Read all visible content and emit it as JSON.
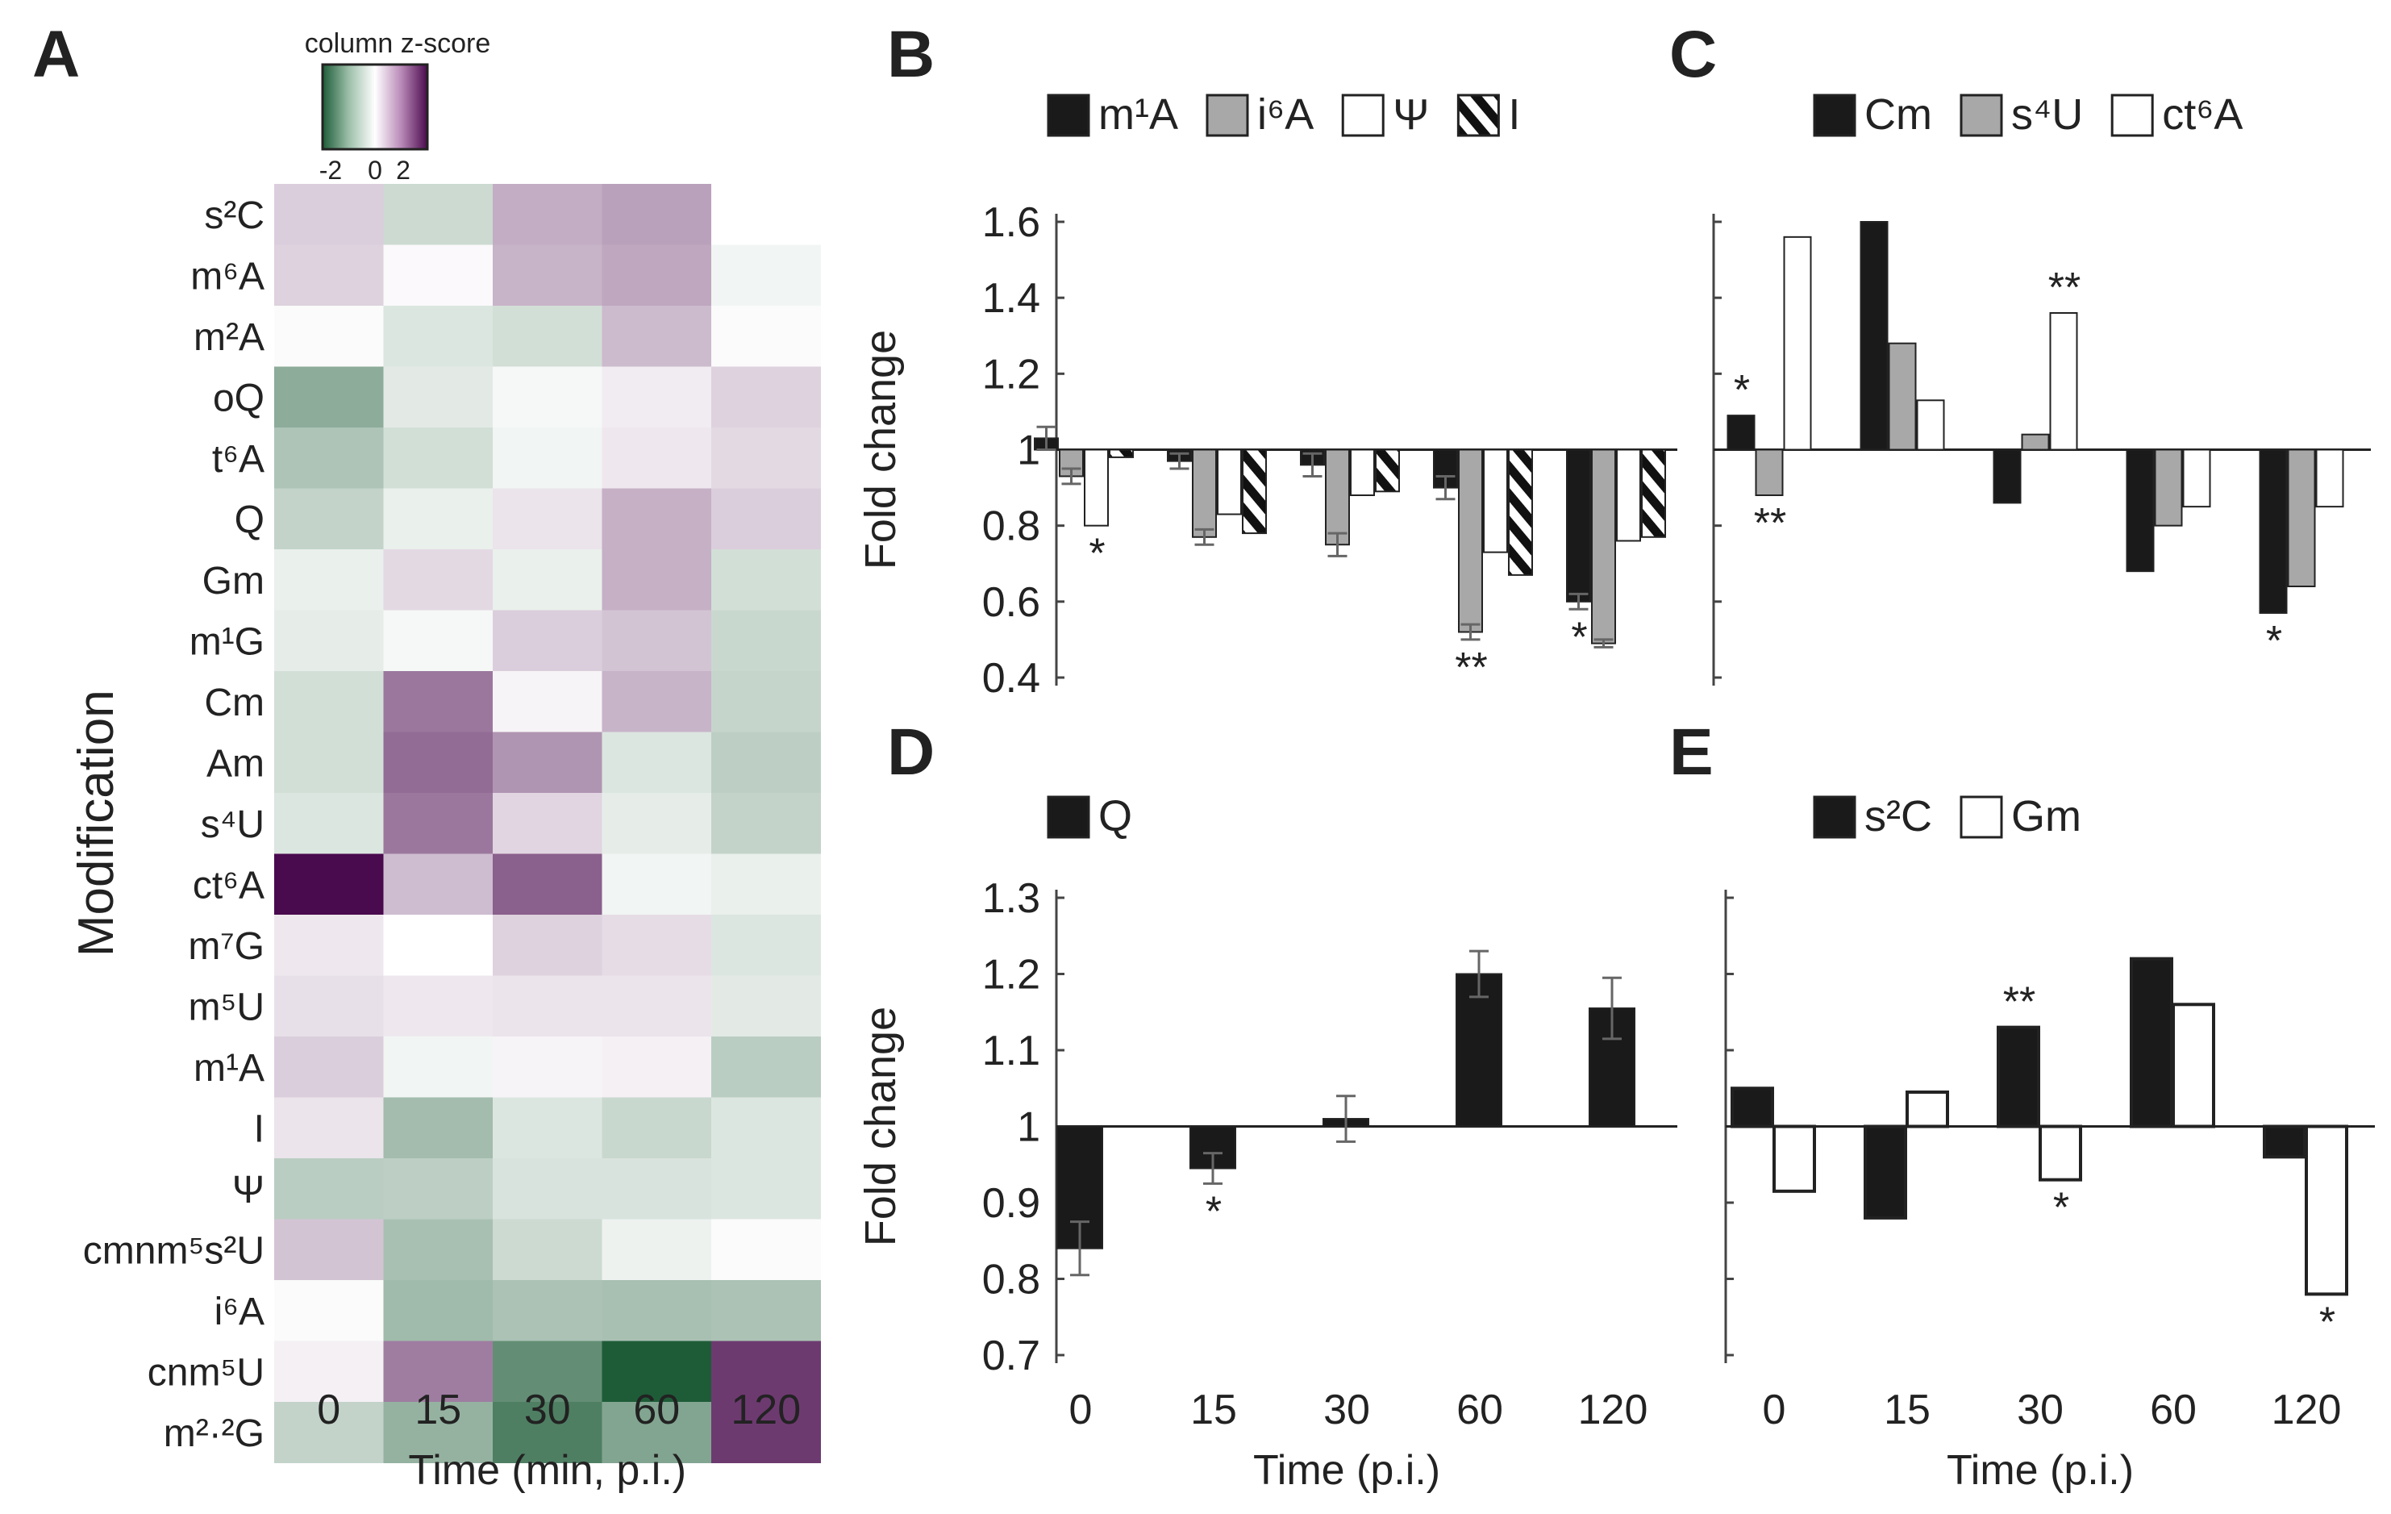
{
  "chart_data": [
    {
      "panel": "A",
      "type": "heatmap",
      "title": "column z-score",
      "colorbar_ticks": [
        "-2",
        "0",
        "2"
      ],
      "colors": {
        "low": "#1e5c38",
        "mid": "#ffffff",
        "high": "#4a0a4e"
      },
      "xlabel": "Time (min, p.i.)",
      "ylabel": "Modification",
      "x": [
        "0",
        "15",
        "30",
        "60",
        "120"
      ],
      "rows": [
        {
          "label": "s²C",
          "values": [
            0.6,
            -0.7,
            1.1,
            1.3,
            0.0
          ]
        },
        {
          "label": "m⁶A",
          "values": [
            0.55,
            0.05,
            1.0,
            1.2,
            -0.15
          ]
        },
        {
          "label": "m²A",
          "values": [
            -0.05,
            -0.45,
            -0.6,
            0.9,
            -0.05
          ]
        },
        {
          "label": "oQ",
          "values": [
            -1.8,
            -0.35,
            -0.1,
            0.2,
            0.55
          ]
        },
        {
          "label": "t⁶A",
          "values": [
            -1.2,
            -0.6,
            -0.15,
            0.25,
            0.45
          ]
        },
        {
          "label": "Q",
          "values": [
            -0.85,
            -0.25,
            0.3,
            1.05,
            0.6
          ]
        },
        {
          "label": "Gm",
          "values": [
            -0.25,
            0.45,
            -0.25,
            1.05,
            -0.6
          ]
        },
        {
          "label": "m¹G",
          "values": [
            -0.3,
            -0.1,
            0.6,
            0.75,
            -0.75
          ]
        },
        {
          "label": "Cm",
          "values": [
            -0.6,
            2.0,
            0.1,
            1.0,
            -0.8
          ]
        },
        {
          "label": "Am",
          "values": [
            -0.6,
            2.2,
            1.5,
            -0.45,
            -0.95
          ]
        },
        {
          "label": "s⁴U",
          "values": [
            -0.45,
            2.0,
            0.5,
            -0.3,
            -0.85
          ]
        },
        {
          "label": "ct⁶A",
          "values": [
            4.0,
            0.85,
            2.4,
            -0.15,
            -0.25
          ]
        },
        {
          "label": "m⁷G",
          "values": [
            0.25,
            0.0,
            0.55,
            0.4,
            -0.45
          ]
        },
        {
          "label": "m⁵U",
          "values": [
            0.35,
            0.25,
            0.3,
            0.3,
            -0.35
          ]
        },
        {
          "label": "m¹A",
          "values": [
            0.6,
            -0.15,
            0.1,
            0.15,
            -1.0
          ]
        },
        {
          "label": "I",
          "values": [
            0.3,
            -1.4,
            -0.45,
            -0.75,
            -0.45
          ]
        },
        {
          "label": "Ψ",
          "values": [
            -1.0,
            -0.95,
            -0.5,
            -0.5,
            -0.45
          ]
        },
        {
          "label": "cmnm⁵s²U",
          "values": [
            0.75,
            -1.3,
            -0.7,
            -0.2,
            -0.05
          ]
        },
        {
          "label": "i⁶A",
          "values": [
            -0.05,
            -1.45,
            -1.25,
            -1.3,
            -1.25
          ]
        },
        {
          "label": "cnm⁵U",
          "values": [
            0.15,
            1.9,
            -2.6,
            -4.0,
            3.1
          ]
        },
        {
          "label": "m²·²G",
          "values": [
            -0.85,
            -1.65,
            -3.0,
            -2.0,
            3.1
          ]
        }
      ]
    },
    {
      "panel": "B",
      "type": "bar",
      "ylabel": "Fold change",
      "ylim": [
        0.4,
        1.6
      ],
      "yticks": [
        "0.4",
        "0.6",
        "0.8",
        "1",
        "1.2",
        "1.4",
        "1.6"
      ],
      "baseline": 1,
      "categories": [
        "0",
        "15",
        "30",
        "60",
        "120"
      ],
      "series": [
        {
          "name": "m¹A",
          "style": "black",
          "values": [
            1.03,
            0.97,
            0.96,
            0.9,
            0.6
          ],
          "errors": [
            0.03,
            0.02,
            0.03,
            0.03,
            0.02
          ]
        },
        {
          "name": "i⁶A",
          "style": "gray",
          "values": [
            0.93,
            0.77,
            0.75,
            0.52,
            0.49
          ],
          "errors": [
            0.02,
            0.02,
            0.03,
            0.02,
            0.01
          ]
        },
        {
          "name": "Ψ",
          "style": "white",
          "values": [
            0.8,
            0.83,
            0.88,
            0.73,
            0.76
          ],
          "errors": [
            0.0,
            0.0,
            0.0,
            0.0,
            0.0
          ]
        },
        {
          "name": "I",
          "style": "hatch",
          "values": [
            0.98,
            0.78,
            0.89,
            0.67,
            0.77
          ],
          "errors": [
            0.0,
            0.0,
            0.0,
            0.0,
            0.0
          ]
        }
      ],
      "annotations": [
        {
          "category": "0",
          "series": "Ψ",
          "text": "*"
        },
        {
          "category": "60",
          "series": "i⁶A",
          "text": "**"
        },
        {
          "category": "120",
          "series": "m¹A",
          "text": "*"
        }
      ]
    },
    {
      "panel": "C",
      "type": "bar",
      "ylim": [
        0.4,
        1.6
      ],
      "baseline": 1,
      "categories": [
        "0",
        "15",
        "30",
        "60",
        "120"
      ],
      "series": [
        {
          "name": "Cm",
          "style": "black",
          "values": [
            1.09,
            1.6,
            0.86,
            0.68,
            0.57
          ]
        },
        {
          "name": "s⁴U",
          "style": "gray",
          "values": [
            0.88,
            1.28,
            1.04,
            0.8,
            0.64
          ]
        },
        {
          "name": "ct⁶A",
          "style": "white",
          "values": [
            1.56,
            1.13,
            1.36,
            0.85,
            0.85
          ]
        }
      ],
      "annotations": [
        {
          "category": "0",
          "series": "Cm",
          "text": "*"
        },
        {
          "category": "0",
          "series": "s⁴U",
          "text": "**"
        },
        {
          "category": "30",
          "series": "ct⁶A",
          "text": "**"
        },
        {
          "category": "120",
          "series": "Cm",
          "text": "*"
        }
      ]
    },
    {
      "panel": "D",
      "type": "bar",
      "ylabel": "Fold change",
      "xlabel": "Time (p.i.)",
      "ylim": [
        0.7,
        1.3
      ],
      "yticks": [
        "0.7",
        "0.8",
        "0.9",
        "1",
        "1.1",
        "1.2",
        "1.3"
      ],
      "baseline": 1,
      "categories": [
        "0",
        "15",
        "30",
        "60",
        "120"
      ],
      "series": [
        {
          "name": "Q",
          "style": "black",
          "values": [
            0.84,
            0.945,
            1.01,
            1.2,
            1.155
          ],
          "errors": [
            0.035,
            0.02,
            0.03,
            0.03,
            0.04
          ]
        }
      ],
      "annotations": [
        {
          "category": "15",
          "series": "Q",
          "text": "*"
        }
      ]
    },
    {
      "panel": "E",
      "type": "bar",
      "xlabel": "Time (p.i.)",
      "ylim": [
        0.7,
        1.3
      ],
      "baseline": 1,
      "categories": [
        "0",
        "15",
        "30",
        "60",
        "120"
      ],
      "series": [
        {
          "name": "s²C",
          "style": "black",
          "values": [
            1.05,
            0.88,
            1.13,
            1.22,
            0.96
          ]
        },
        {
          "name": "Gm",
          "style": "white",
          "values": [
            0.915,
            1.045,
            0.93,
            1.16,
            0.78
          ]
        }
      ],
      "annotations": [
        {
          "category": "30",
          "series": "s²C",
          "text": "**"
        },
        {
          "category": "30",
          "series": "Gm",
          "text": "*"
        },
        {
          "category": "120",
          "series": "Gm",
          "text": "*"
        }
      ]
    }
  ]
}
